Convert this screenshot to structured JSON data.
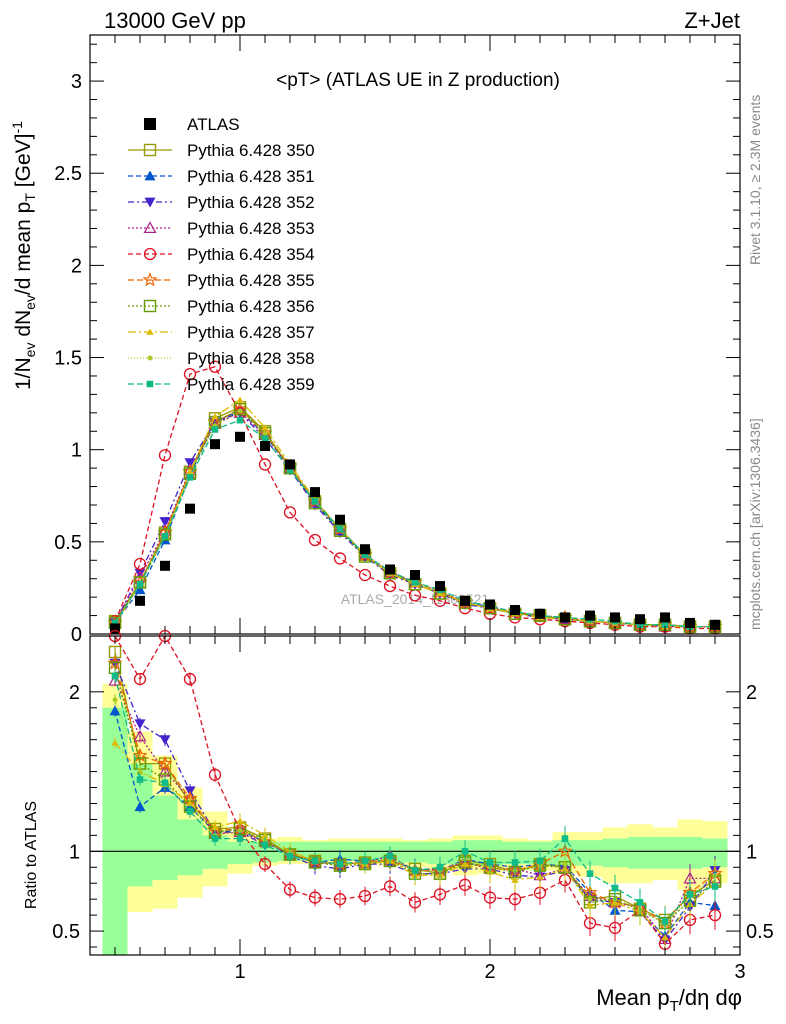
{
  "header": {
    "left": "13000 GeV pp",
    "right": "Z+Jet"
  },
  "side_labels": {
    "rivet": "Rivet 3.1.10, ≥ 2.3M events",
    "source": "mcplots.cern.ch [arXiv:1306.3436]"
  },
  "watermark": "ATLAS_2014_I1300521",
  "colors": {
    "band_inner": "#99ff99",
    "band_outer": "#ffff99"
  },
  "chart_data": [
    {
      "type": "line",
      "title": "<pT> (ATLAS UE in Z production)",
      "ylabel": "1/N_ev dN_ev/d mean p_T [GeV]^-1",
      "ylabel_parts": {
        "a": "1/N",
        "b": "ev",
        "c": " dN",
        "d": "ev",
        "e": "/d mean p",
        "f": "T",
        "g": " [GeV]",
        "h": "-1"
      },
      "xlim": [
        0.4,
        3.0
      ],
      "ylim": [
        0,
        3.25
      ],
      "yticks": [
        "0",
        "0.5",
        "1",
        "1.5",
        "2",
        "2.5",
        "3"
      ],
      "x": [
        0.5,
        0.6,
        0.7,
        0.8,
        0.9,
        1.0,
        1.1,
        1.2,
        1.3,
        1.4,
        1.5,
        1.6,
        1.7,
        1.8,
        1.9,
        2.0,
        2.1,
        2.2,
        2.3,
        2.4,
        2.5,
        2.6,
        2.7,
        2.8,
        2.9
      ],
      "data": {
        "name": "ATLAS",
        "values": [
          0.03,
          0.18,
          0.37,
          0.68,
          1.03,
          1.07,
          1.02,
          0.92,
          0.77,
          0.62,
          0.46,
          0.35,
          0.32,
          0.26,
          0.18,
          0.16,
          0.13,
          0.11,
          0.09,
          0.1,
          0.09,
          0.08,
          0.09,
          0.06,
          0.05
        ]
      },
      "series": [
        {
          "name": "Pythia 6.428 350",
          "color": "#999900",
          "marker": "square-open",
          "dash": "solid",
          "values": [
            0.07,
            0.28,
            0.55,
            0.88,
            1.17,
            1.23,
            1.1,
            0.9,
            0.72,
            0.57,
            0.43,
            0.33,
            0.27,
            0.22,
            0.17,
            0.14,
            0.11,
            0.1,
            0.08,
            0.07,
            0.06,
            0.05,
            0.05,
            0.04,
            0.04
          ]
        },
        {
          "name": "Pythia 6.428 351",
          "color": "#0055cc",
          "marker": "triangle-up",
          "dash": "5,3",
          "values": [
            0.06,
            0.24,
            0.51,
            0.86,
            1.15,
            1.21,
            1.08,
            0.9,
            0.71,
            0.56,
            0.43,
            0.33,
            0.28,
            0.23,
            0.17,
            0.15,
            0.12,
            0.1,
            0.08,
            0.07,
            0.06,
            0.05,
            0.04,
            0.04,
            0.04
          ]
        },
        {
          "name": "Pythia 6.428 352",
          "color": "#4422cc",
          "marker": "triangle-down",
          "dash": "6,3,2,3",
          "values": [
            0.06,
            0.33,
            0.61,
            0.93,
            1.15,
            1.2,
            1.06,
            0.89,
            0.7,
            0.55,
            0.42,
            0.32,
            0.27,
            0.22,
            0.16,
            0.14,
            0.11,
            0.09,
            0.08,
            0.07,
            0.06,
            0.05,
            0.04,
            0.04,
            0.04
          ]
        },
        {
          "name": "Pythia 6.428 353",
          "color": "#aa2288",
          "marker": "triangle-open",
          "dash": "2,2",
          "values": [
            0.06,
            0.31,
            0.56,
            0.89,
            1.14,
            1.2,
            1.08,
            0.9,
            0.72,
            0.57,
            0.43,
            0.34,
            0.28,
            0.23,
            0.17,
            0.14,
            0.12,
            0.1,
            0.08,
            0.07,
            0.06,
            0.05,
            0.04,
            0.04,
            0.04
          ]
        },
        {
          "name": "Pythia 6.428 354",
          "color": "#dd1122",
          "marker": "circle-open",
          "dash": "5,3",
          "values": [
            0.07,
            0.38,
            0.97,
            1.41,
            1.45,
            1.2,
            0.92,
            0.66,
            0.51,
            0.41,
            0.32,
            0.26,
            0.21,
            0.18,
            0.14,
            0.11,
            0.09,
            0.08,
            0.07,
            0.06,
            0.05,
            0.04,
            0.04,
            0.03,
            0.03
          ]
        },
        {
          "name": "Pythia 6.428 355",
          "color": "#ee6600",
          "marker": "star-open",
          "dash": "6,3",
          "values": [
            0.06,
            0.28,
            0.55,
            0.88,
            1.15,
            1.22,
            1.09,
            0.91,
            0.72,
            0.57,
            0.43,
            0.33,
            0.28,
            0.23,
            0.17,
            0.14,
            0.12,
            0.1,
            0.09,
            0.07,
            0.06,
            0.05,
            0.05,
            0.04,
            0.04
          ]
        },
        {
          "name": "Pythia 6.428 356",
          "color": "#669900",
          "marker": "square-open",
          "dash": "2,2",
          "values": [
            0.06,
            0.28,
            0.54,
            0.87,
            1.15,
            1.22,
            1.09,
            0.9,
            0.71,
            0.56,
            0.42,
            0.33,
            0.27,
            0.22,
            0.17,
            0.14,
            0.11,
            0.1,
            0.08,
            0.07,
            0.06,
            0.05,
            0.05,
            0.04,
            0.04
          ]
        },
        {
          "name": "Pythia 6.428 357",
          "color": "#ddbb00",
          "marker": "tri-small",
          "dash": "8,3,2,3",
          "values": [
            0.05,
            0.27,
            0.53,
            0.88,
            1.18,
            1.27,
            1.12,
            0.92,
            0.73,
            0.57,
            0.43,
            0.33,
            0.27,
            0.22,
            0.17,
            0.14,
            0.11,
            0.09,
            0.08,
            0.07,
            0.06,
            0.05,
            0.04,
            0.04,
            0.04
          ]
        },
        {
          "name": "Pythia 6.428 358",
          "color": "#aacc22",
          "marker": "dot",
          "dash": "1,2",
          "values": [
            0.06,
            0.27,
            0.53,
            0.85,
            1.13,
            1.21,
            1.09,
            0.91,
            0.72,
            0.57,
            0.43,
            0.33,
            0.28,
            0.23,
            0.17,
            0.14,
            0.12,
            0.1,
            0.08,
            0.07,
            0.06,
            0.05,
            0.05,
            0.04,
            0.04
          ]
        },
        {
          "name": "Pythia 6.428 359",
          "color": "#11bb88",
          "marker": "square-small",
          "dash": "6,3",
          "values": [
            0.06,
            0.27,
            0.53,
            0.85,
            1.11,
            1.16,
            1.06,
            0.89,
            0.72,
            0.57,
            0.43,
            0.34,
            0.28,
            0.24,
            0.18,
            0.15,
            0.12,
            0.1,
            0.09,
            0.08,
            0.07,
            0.05,
            0.05,
            0.04,
            0.04
          ]
        }
      ]
    },
    {
      "type": "line",
      "ylabel": "Ratio to ATLAS",
      "xlabel": "Mean p_T/dη dφ",
      "xlabel_parts": {
        "a": "Mean p",
        "b": "T",
        "c": "/dη dφ"
      },
      "xlim": [
        0.4,
        3.0
      ],
      "ylim": [
        0.35,
        2.35
      ],
      "xticks": [
        "1",
        "2",
        "3"
      ],
      "yticks": [
        "0.5",
        "1",
        "2"
      ],
      "bands": {
        "x_edges": [
          0.45,
          0.55,
          0.65,
          0.75,
          0.85,
          0.95,
          1.05,
          1.15,
          1.25,
          1.35,
          1.45,
          1.55,
          1.65,
          1.75,
          1.85,
          1.95,
          2.05,
          2.15,
          2.25,
          2.35,
          2.45,
          2.55,
          2.65,
          2.75,
          2.85,
          2.95
        ],
        "inner_hi": [
          1.9,
          1.55,
          1.35,
          1.2,
          1.1,
          1.06,
          1.06,
          1.06,
          1.06,
          1.06,
          1.06,
          1.06,
          1.06,
          1.06,
          1.07,
          1.07,
          1.06,
          1.06,
          1.07,
          1.07,
          1.08,
          1.09,
          1.09,
          1.09,
          1.08
        ],
        "inner_lo": [
          0.3,
          0.78,
          0.82,
          0.85,
          0.89,
          0.92,
          0.93,
          0.94,
          0.94,
          0.94,
          0.94,
          0.94,
          0.93,
          0.92,
          0.91,
          0.91,
          0.92,
          0.92,
          0.91,
          0.91,
          0.9,
          0.89,
          0.89,
          0.89,
          0.9
        ],
        "outer_hi": [
          2.05,
          1.75,
          1.6,
          1.4,
          1.25,
          1.12,
          1.08,
          1.09,
          1.07,
          1.08,
          1.08,
          1.08,
          1.07,
          1.08,
          1.1,
          1.1,
          1.08,
          1.07,
          1.12,
          1.12,
          1.15,
          1.17,
          1.15,
          1.2,
          1.19
        ],
        "outer_lo": [
          0.3,
          0.62,
          0.64,
          0.71,
          0.78,
          0.86,
          0.91,
          0.92,
          0.92,
          0.92,
          0.92,
          0.91,
          0.9,
          0.88,
          0.85,
          0.86,
          0.88,
          0.88,
          0.86,
          0.84,
          0.8,
          0.8,
          0.82,
          0.76,
          0.8
        ]
      },
      "x": [
        0.5,
        0.6,
        0.7,
        0.8,
        0.9,
        1.0,
        1.1,
        1.2,
        1.3,
        1.4,
        1.5,
        1.6,
        1.7,
        1.8,
        1.9,
        2.0,
        2.1,
        2.2,
        2.3,
        2.4,
        2.5,
        2.6,
        2.7,
        2.8,
        2.9
      ],
      "series": [
        {
          "name": "Pythia 6.428 350",
          "color": "#999900",
          "marker": "square-open",
          "dash": "solid",
          "values": [
            2.25,
            1.55,
            1.55,
            1.3,
            1.14,
            1.15,
            1.08,
            0.98,
            0.94,
            0.92,
            0.93,
            0.94,
            0.89,
            0.86,
            0.94,
            0.92,
            0.87,
            0.92,
            0.9,
            0.7,
            0.72,
            0.64,
            0.57,
            0.72,
            0.82
          ]
        },
        {
          "name": "Pythia 6.428 351",
          "color": "#0055cc",
          "marker": "triangle-up",
          "dash": "5,3",
          "values": [
            1.88,
            1.28,
            1.4,
            1.28,
            1.12,
            1.13,
            1.06,
            0.98,
            0.93,
            0.95,
            0.94,
            0.94,
            0.89,
            0.88,
            0.95,
            0.92,
            0.9,
            0.92,
            0.91,
            0.74,
            0.63,
            0.62,
            0.47,
            0.68,
            0.66
          ]
        },
        {
          "name": "Pythia 6.428 352",
          "color": "#4422cc",
          "marker": "triangle-down",
          "dash": "6,3,2,3",
          "values": [
            2.18,
            1.8,
            1.7,
            1.38,
            1.12,
            1.12,
            1.04,
            0.97,
            0.91,
            0.89,
            0.92,
            0.92,
            0.86,
            0.86,
            0.89,
            0.89,
            0.85,
            0.84,
            0.88,
            0.7,
            0.68,
            0.62,
            0.44,
            0.65,
            0.88
          ]
        },
        {
          "name": "Pythia 6.428 353",
          "color": "#aa2288",
          "marker": "triangle-open",
          "dash": "2,2",
          "values": [
            2.07,
            1.72,
            1.5,
            1.33,
            1.11,
            1.12,
            1.06,
            0.98,
            0.93,
            0.92,
            0.93,
            0.97,
            0.88,
            0.89,
            0.93,
            0.89,
            0.89,
            0.85,
            0.89,
            0.72,
            0.68,
            0.65,
            0.45,
            0.83,
            0.83
          ]
        },
        {
          "name": "Pythia 6.428 354",
          "color": "#dd1122",
          "marker": "circle-open",
          "dash": "5,3",
          "values": [
            2.4,
            2.08,
            2.4,
            2.08,
            1.48,
            1.13,
            0.92,
            0.76,
            0.71,
            0.7,
            0.72,
            0.78,
            0.68,
            0.73,
            0.79,
            0.71,
            0.7,
            0.74,
            0.82,
            0.55,
            0.52,
            0.63,
            0.42,
            0.57,
            0.6
          ]
        },
        {
          "name": "Pythia 6.428 355",
          "color": "#ee6600",
          "marker": "star-open",
          "dash": "6,3",
          "values": [
            2.18,
            1.6,
            1.55,
            1.33,
            1.13,
            1.14,
            1.06,
            0.99,
            0.94,
            0.92,
            0.93,
            0.95,
            0.88,
            0.88,
            0.93,
            0.9,
            0.88,
            0.92,
            1.0,
            0.74,
            0.68,
            0.65,
            0.55,
            0.74,
            0.86
          ]
        },
        {
          "name": "Pythia 6.428 356",
          "color": "#669900",
          "marker": "square-open",
          "dash": "2,2",
          "values": [
            2.15,
            1.55,
            1.45,
            1.28,
            1.12,
            1.14,
            1.07,
            0.98,
            0.93,
            0.91,
            0.92,
            0.94,
            0.86,
            0.86,
            0.93,
            0.9,
            0.87,
            0.91,
            0.9,
            0.68,
            0.7,
            0.63,
            0.55,
            0.69,
            0.81
          ]
        },
        {
          "name": "Pythia 6.428 357",
          "color": "#ddbb00",
          "marker": "tri-small",
          "dash": "8,3,2,3",
          "values": [
            1.68,
            1.5,
            1.42,
            1.3,
            1.15,
            1.19,
            1.1,
            1.0,
            0.94,
            0.92,
            0.92,
            0.94,
            0.85,
            0.85,
            0.92,
            0.87,
            0.82,
            0.84,
            0.89,
            0.66,
            0.68,
            0.62,
            0.46,
            0.67,
            0.8
          ]
        },
        {
          "name": "Pythia 6.428 358",
          "color": "#aacc22",
          "marker": "dot",
          "dash": "1,2",
          "values": [
            1.95,
            1.5,
            1.43,
            1.25,
            1.1,
            1.13,
            1.07,
            0.99,
            0.94,
            0.92,
            0.93,
            0.95,
            0.87,
            0.88,
            0.95,
            0.9,
            0.88,
            0.91,
            0.92,
            0.7,
            0.7,
            0.64,
            0.54,
            0.72,
            0.85
          ]
        },
        {
          "name": "Pythia 6.428 359",
          "color": "#11bb88",
          "marker": "square-small",
          "dash": "6,3",
          "values": [
            2.1,
            1.45,
            1.43,
            1.25,
            1.08,
            1.08,
            1.04,
            0.97,
            0.94,
            0.92,
            0.94,
            0.97,
            0.88,
            0.9,
            1.0,
            0.93,
            0.93,
            0.94,
            1.08,
            0.86,
            0.77,
            0.68,
            0.56,
            0.73,
            0.78
          ]
        }
      ]
    }
  ]
}
